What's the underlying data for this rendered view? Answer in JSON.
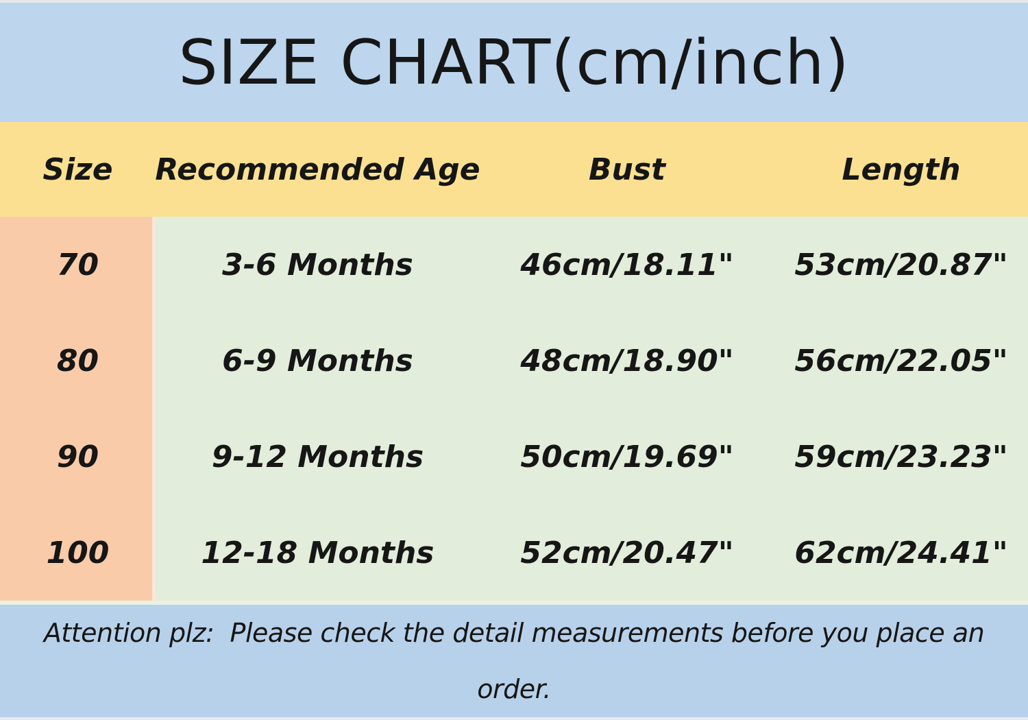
{
  "chart_data": {
    "type": "table",
    "title": "SIZE CHART(cm/inch)",
    "columns": [
      "Size",
      "Recommended Age",
      "Bust",
      "Length"
    ],
    "rows": [
      [
        "70",
        "3-6 Months",
        "46cm/18.11\"",
        "53cm/20.87\""
      ],
      [
        "80",
        "6-9 Months",
        "48cm/18.90\"",
        "56cm/22.05\""
      ],
      [
        "90",
        "9-12 Months",
        "50cm/19.69\"",
        "59cm/23.23\""
      ],
      [
        "100",
        "12-18 Months",
        "52cm/20.47\"",
        "62cm/24.41\""
      ]
    ],
    "note_line1": "Attention plz:  Please check the detail measurements before you place an",
    "note_line2": "order."
  },
  "colors": {
    "title_bg": "#BDD6EE",
    "header_bg": "#FBE092",
    "size_col_bg": "#F9CBA9",
    "body_bg": "#E2EDDB",
    "footer_bg": "#B8D1EA",
    "text": "#161616"
  }
}
